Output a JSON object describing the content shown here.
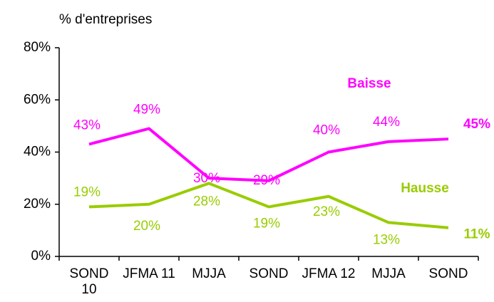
{
  "chart_data": {
    "type": "line",
    "y_axis_label": "% d'entreprises",
    "categories": [
      "SOND 10",
      "JFMA 11",
      "MJJA",
      "SOND",
      "JFMA 12",
      "MJJA",
      "SOND"
    ],
    "ylim": [
      0,
      80
    ],
    "yticks": [
      {
        "value": 0,
        "label": "0%"
      },
      {
        "value": 20,
        "label": "20%"
      },
      {
        "value": 40,
        "label": "40%"
      },
      {
        "value": 60,
        "label": "60%"
      },
      {
        "value": 80,
        "label": "80%"
      }
    ],
    "series": [
      {
        "name": "Baisse",
        "color": "#ff00ff",
        "values": [
          43,
          49,
          30,
          29,
          40,
          44,
          45
        ],
        "value_labels": [
          "43%",
          "49%",
          "30%",
          "29%",
          "40%",
          "44%",
          "45%"
        ]
      },
      {
        "name": "Hausse",
        "color": "#99cc00",
        "values": [
          19,
          20,
          28,
          19,
          23,
          13,
          11
        ],
        "value_labels": [
          "19%",
          "20%",
          "28%",
          "19%",
          "23%",
          "13%",
          "11%"
        ]
      }
    ]
  }
}
